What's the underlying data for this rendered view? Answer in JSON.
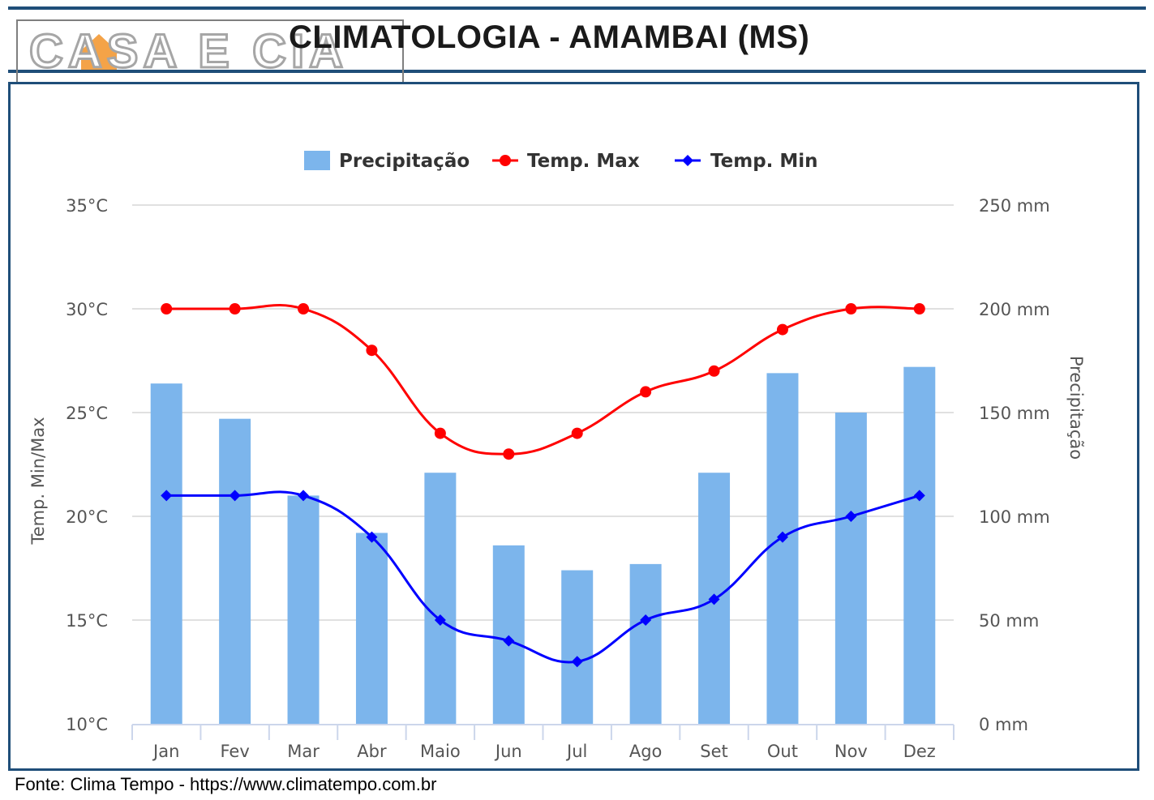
{
  "page": {
    "title": "CLIMATOLOGIA - AMAMBAI (MS)",
    "source": "Fonte: Clima Tempo - https://www.climatempo.com.br",
    "logo_text": "CASA E CIA"
  },
  "colors": {
    "frame": "#1f4e79",
    "bars": "#7cb5ec",
    "tmax": "#ff0000",
    "tmin": "#0000ff",
    "grid": "#e0e0e0",
    "text": "#555555"
  },
  "chart_data": {
    "type": "bar+line",
    "categories": [
      "Jan",
      "Fev",
      "Mar",
      "Abr",
      "Maio",
      "Jun",
      "Jul",
      "Ago",
      "Set",
      "Out",
      "Nov",
      "Dez"
    ],
    "series": [
      {
        "name": "Precipitação",
        "type": "bar",
        "axis": "right",
        "values": [
          164,
          147,
          110,
          92,
          121,
          86,
          74,
          77,
          121,
          169,
          150,
          172
        ]
      },
      {
        "name": "Temp. Max",
        "type": "line",
        "axis": "left",
        "values": [
          30,
          30,
          30,
          28,
          24,
          23,
          24,
          26,
          27,
          29,
          30,
          30
        ]
      },
      {
        "name": "Temp. Min",
        "type": "line",
        "axis": "left",
        "values": [
          21,
          21,
          21,
          19,
          15,
          14,
          13,
          15,
          16,
          19,
          20,
          21
        ]
      }
    ],
    "left_axis": {
      "label": "Temp. Min/Max",
      "ylim": [
        10,
        35
      ],
      "ticks": [
        "10°C",
        "15°C",
        "20°C",
        "25°C",
        "30°C",
        "35°C"
      ]
    },
    "right_axis": {
      "label": "Precipitação",
      "ylim": [
        0,
        250
      ],
      "ticks": [
        "0 mm",
        "50 mm",
        "100 mm",
        "150 mm",
        "200 mm",
        "250 mm"
      ]
    },
    "legend": [
      "Precipitação",
      "Temp. Max",
      "Temp. Min"
    ],
    "legend_position": "top-center",
    "grid": true
  }
}
